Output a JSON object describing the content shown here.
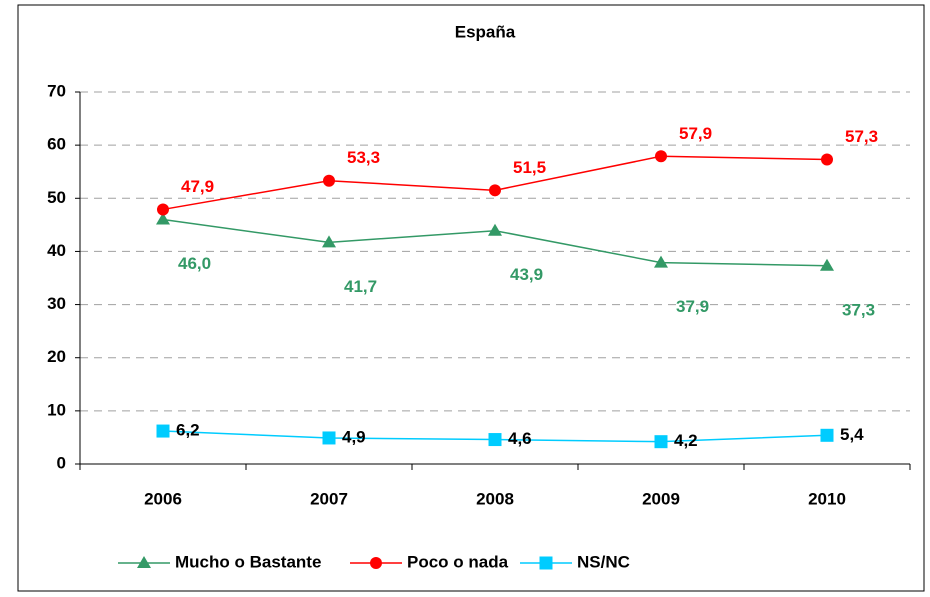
{
  "chart_data": {
    "type": "line",
    "title": "España",
    "categories": [
      "2006",
      "2007",
      "2008",
      "2009",
      "2010"
    ],
    "series": [
      {
        "name": "Mucho o Bastante",
        "color": "#339966",
        "marker": "triangle",
        "label_color": "#339966",
        "values": [
          46.0,
          41.7,
          43.9,
          37.9,
          37.3
        ],
        "value_labels": [
          "46,0",
          "41,7",
          "43,9",
          "37,9",
          "37,3"
        ]
      },
      {
        "name": "Poco o nada",
        "color": "#ff0000",
        "marker": "circle",
        "label_color": "#ff0000",
        "values": [
          47.9,
          53.3,
          51.5,
          57.9,
          57.3
        ],
        "value_labels": [
          "47,9",
          "53,3",
          "51,5",
          "57,9",
          "57,3"
        ]
      },
      {
        "name": "NS/NC",
        "color": "#00ccff",
        "marker": "square",
        "label_color": "#000000",
        "values": [
          6.2,
          4.9,
          4.6,
          4.2,
          5.4
        ],
        "value_labels": [
          "6,2",
          "4,9",
          "4,6",
          "4,2",
          "5,4"
        ]
      }
    ],
    "ylim": [
      0,
      70
    ],
    "yticks": [
      0,
      10,
      20,
      30,
      40,
      50,
      60,
      70
    ],
    "grid": true,
    "legend": "bottom"
  }
}
